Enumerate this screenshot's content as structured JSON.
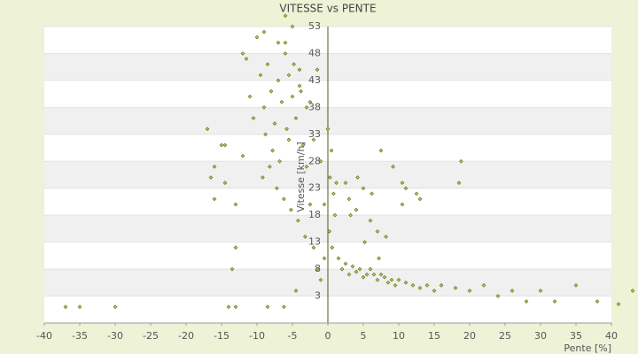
{
  "chart_data": {
    "type": "scatter",
    "title": "VITESSE vs PENTE",
    "x_label": "Pente [%]",
    "y_label": "Vitesse [km/h]",
    "color": "#6b7a1a",
    "xlim": [
      -40,
      40
    ],
    "ylim": [
      -2,
      53
    ],
    "xticks": [
      -40,
      -35,
      -30,
      -25,
      -20,
      -15,
      -10,
      -5,
      0,
      5,
      10,
      15,
      20,
      25,
      30,
      35,
      40
    ],
    "yticks": [
      3,
      8,
      13,
      18,
      23,
      28,
      33,
      38,
      43,
      48,
      53
    ],
    "x": [
      -9.5,
      -9,
      -8.5,
      -8,
      -7.5,
      -7,
      -6.5,
      -6,
      -5.5,
      -5,
      -4.5,
      -4,
      -3.5,
      -3,
      -8.8,
      -7.8,
      -6.8,
      -5.8,
      -4.8,
      -3.8,
      -9.2,
      -8.2,
      -7.2,
      -6.2,
      -5.2,
      -4.2,
      -3.2,
      -10.5,
      -11,
      -12,
      -17,
      -15,
      -14.5,
      -16,
      -13,
      -6,
      -5,
      -4,
      -3,
      -2.5,
      -2,
      -1.5,
      -1,
      -0.5,
      0.3,
      0.5,
      0.8,
      1,
      1.2,
      0.2,
      0.6,
      1.5,
      2,
      2.5,
      3,
      3.5,
      4,
      4.5,
      5,
      5.5,
      6,
      6.5,
      7,
      7.5,
      8,
      8.5,
      9,
      9.5,
      10,
      11,
      12,
      13,
      14,
      15,
      16,
      18,
      20,
      22,
      24,
      26,
      28,
      30,
      32,
      35,
      38,
      41,
      43,
      3,
      4,
      5,
      6,
      7,
      2.5,
      3.2,
      4.2,
      5.2,
      6.2,
      7.2,
      8.2,
      9.2,
      10.5,
      12.5,
      18.5,
      18.8,
      11,
      10.5,
      13,
      7.5,
      -37,
      -35,
      -30,
      -14,
      -13,
      -8.5,
      -6.2,
      -4.5,
      -14.5,
      -13,
      -13.5,
      -16.5,
      -16,
      -2,
      -1,
      -0.5,
      0,
      -10,
      -11.5,
      -12,
      -9,
      -6,
      -5.5,
      -2.5,
      -1.5,
      -7
    ],
    "values": [
      44,
      38,
      46,
      41,
      35,
      43,
      39,
      48,
      44,
      40,
      36,
      42,
      31,
      38,
      33,
      30,
      28,
      34,
      46,
      41,
      25,
      27,
      23,
      21,
      19,
      17,
      14,
      36,
      40,
      29,
      34,
      31,
      31,
      27,
      12,
      50,
      53,
      45,
      27,
      20,
      12,
      8,
      6,
      10,
      25,
      30,
      22,
      18,
      24,
      15,
      12,
      10,
      8,
      9,
      7,
      8.5,
      7.5,
      8,
      6.5,
      7,
      8,
      7,
      6,
      7,
      6.5,
      5.5,
      6,
      5,
      6,
      5.5,
      5,
      4.5,
      5,
      4,
      5,
      4.5,
      4,
      5,
      3,
      4,
      2,
      4,
      2,
      5,
      2,
      1.5,
      4,
      21,
      19,
      23,
      17,
      15,
      24,
      18,
      25,
      13,
      22,
      10,
      14,
      27,
      24,
      22,
      24,
      28,
      23,
      20,
      21,
      30,
      1,
      1,
      1,
      1,
      1,
      1,
      1,
      4,
      24,
      20,
      8,
      25,
      21,
      32,
      28,
      20,
      34,
      51,
      47,
      48,
      52,
      55,
      32,
      39,
      45,
      50
    ]
  }
}
